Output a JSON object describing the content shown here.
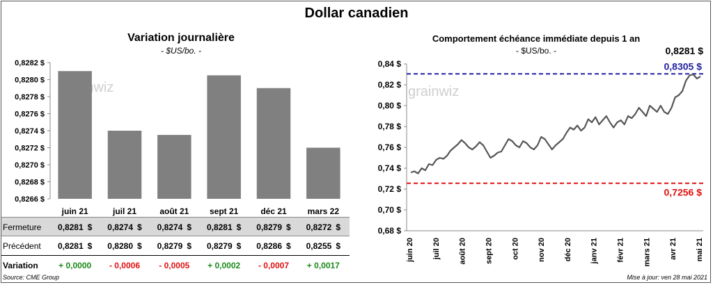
{
  "title": "Dollar canadien",
  "left_chart": {
    "title": "Variation  journalière",
    "subtitle": "- $US/bo. -",
    "watermark": "grainwiz"
  },
  "right_chart": {
    "title": "Comportement échéance immédiate depuis 1 an",
    "subtitle": "- $US/bo. -",
    "watermark": "grainwiz",
    "last_value": "0,8281 $",
    "max_label": "0,8305  $",
    "min_label": "0,7256  $"
  },
  "table": {
    "rows": [
      {
        "label": "Fermeture",
        "values": [
          "0,8281",
          "0,8274",
          "0,8274",
          "0,8281",
          "0,8279",
          "0,8272"
        ]
      },
      {
        "label": "Précédent",
        "values": [
          "0,8281",
          "0,8280",
          "0,8279",
          "0,8279",
          "0,8286",
          "0,8255"
        ]
      }
    ],
    "unit": "$",
    "variation_label": "Variation",
    "variation": [
      "+ 0,0000",
      "- 0,0006",
      "- 0,0005",
      "+ 0,0002",
      "- 0,0007",
      "+ 0,0017"
    ]
  },
  "footer": {
    "source": "Source: CME Group",
    "updated": "Mise à jour: ven 28 mai 2021"
  },
  "colors": {
    "bar": "#808080",
    "line": "#555555",
    "max_line": "#1f1fa0",
    "min_line": "#e01010",
    "positive": "#1a8a1a",
    "negative": "#e01010"
  },
  "chart_data": [
    {
      "type": "bar",
      "title": "Variation  journalière",
      "categories": [
        "juin 21",
        "juil 21",
        "août 21",
        "sept 21",
        "déc 21",
        "mars 22"
      ],
      "values": [
        0.8281,
        0.8274,
        0.82735,
        0.82805,
        0.8279,
        0.8272
      ],
      "ylim": [
        0.8266,
        0.8282
      ],
      "yticks": [
        "0,8282 $",
        "0,8280 $",
        "0,8278 $",
        "0,8276 $",
        "0,8274 $",
        "0,8272 $",
        "0,8270 $",
        "0,8268 $",
        "0,8266 $"
      ],
      "grid": false
    },
    {
      "type": "line",
      "title": "Comportement échéance immédiate depuis 1 an",
      "x_labels": [
        "juin 20",
        "juil 20",
        "août 20",
        "sept 20",
        "oct 20",
        "nov 20",
        "déc 20",
        "janv 21",
        "févr 21",
        "mars 21",
        "avr 21",
        "mai 21"
      ],
      "ylim": [
        0.68,
        0.84
      ],
      "yticks": [
        "0,84 $",
        "0,82 $",
        "0,80 $",
        "0,78 $",
        "0,76 $",
        "0,74 $",
        "0,72 $",
        "0,70 $",
        "0,68 $"
      ],
      "values": [
        0.736,
        0.737,
        0.735,
        0.74,
        0.738,
        0.744,
        0.743,
        0.748,
        0.75,
        0.749,
        0.752,
        0.757,
        0.76,
        0.763,
        0.767,
        0.764,
        0.76,
        0.758,
        0.761,
        0.765,
        0.762,
        0.756,
        0.75,
        0.752,
        0.755,
        0.756,
        0.762,
        0.768,
        0.766,
        0.762,
        0.76,
        0.766,
        0.764,
        0.76,
        0.758,
        0.762,
        0.77,
        0.768,
        0.763,
        0.758,
        0.762,
        0.765,
        0.768,
        0.774,
        0.779,
        0.777,
        0.781,
        0.776,
        0.779,
        0.787,
        0.784,
        0.789,
        0.782,
        0.786,
        0.79,
        0.784,
        0.779,
        0.784,
        0.786,
        0.782,
        0.79,
        0.788,
        0.792,
        0.798,
        0.794,
        0.79,
        0.8,
        0.797,
        0.794,
        0.8,
        0.794,
        0.792,
        0.798,
        0.808,
        0.81,
        0.814,
        0.824,
        0.829,
        0.83,
        0.826,
        0.828
      ],
      "max": 0.8305,
      "min": 0.7256,
      "last": 0.8281,
      "grid": false
    }
  ]
}
